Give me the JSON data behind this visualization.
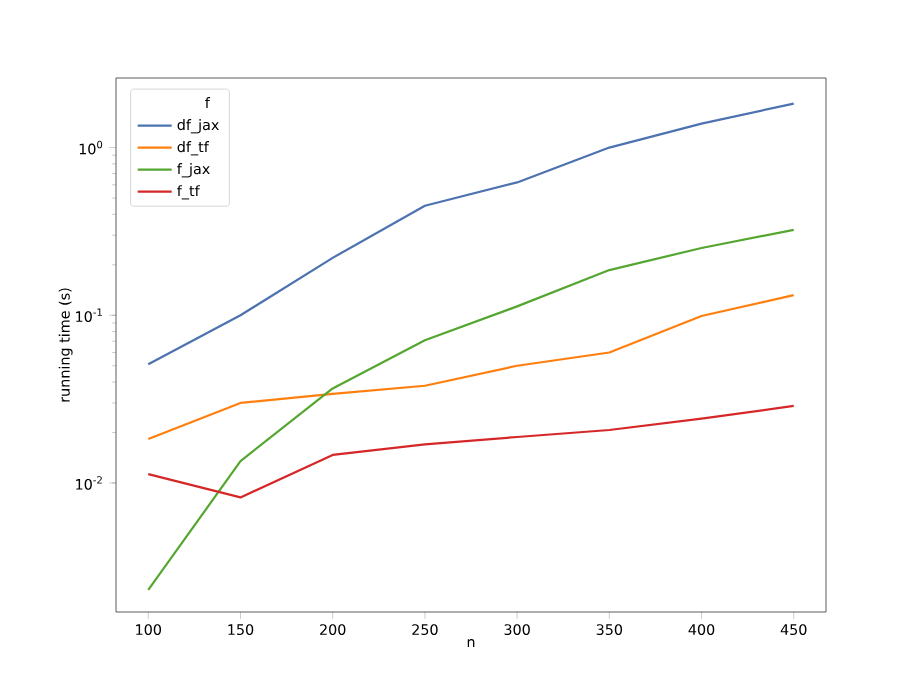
{
  "chart_data": {
    "type": "line",
    "xlabel": "n",
    "ylabel": "running time (s)",
    "legend_title": "f",
    "legend": "top left",
    "log": "y",
    "grid": false,
    "marker": "none",
    "line_style": "solid",
    "x": [
      100,
      150,
      200,
      250,
      300,
      350,
      400,
      450
    ],
    "xlim": [
      82.5,
      467.5
    ],
    "xticks": [
      100,
      150,
      200,
      250,
      300,
      350,
      400,
      450
    ],
    "ylim": [
      0.0017,
      2.6
    ],
    "yticks": [
      {
        "value": 0.01,
        "label": "10$^{-2}$"
      },
      {
        "value": 0.1,
        "label": "10$^{-1}$"
      },
      {
        "value": 1,
        "label": "10$^{0}$"
      }
    ],
    "series": [
      {
        "name": "df_jax",
        "color": "#4c72b0",
        "values": [
          0.051,
          0.1,
          0.22,
          0.45,
          0.62,
          1.0,
          1.39,
          1.83
        ]
      },
      {
        "name": "df_tf",
        "color": "#ff7f0e",
        "values": [
          0.0183,
          0.03,
          0.034,
          0.038,
          0.05,
          0.06,
          0.099,
          0.132
        ]
      },
      {
        "name": "f_jax",
        "color": "#55a630",
        "values": [
          0.0023,
          0.0135,
          0.0366,
          0.071,
          0.113,
          0.186,
          0.252,
          0.323
        ]
      },
      {
        "name": "f_tf",
        "color": "#d62728",
        "values": [
          0.0113,
          0.0082,
          0.0147,
          0.017,
          0.0188,
          0.0207,
          0.0242,
          0.0288
        ]
      }
    ]
  }
}
